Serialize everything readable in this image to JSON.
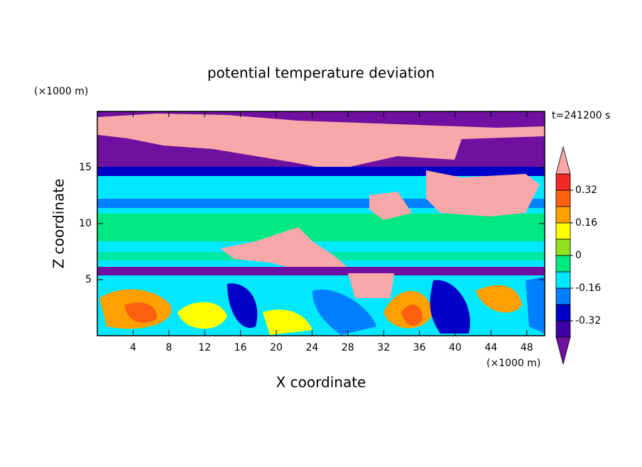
{
  "chart_data": {
    "type": "contour",
    "title": "potential temperature deviation",
    "x_label": "X coordinate",
    "y_label": "Z coordinate",
    "x_unit": "(×1000 m)",
    "y_unit": "(×1000 m)",
    "time_label": "t=241200 s",
    "xlim": [
      0,
      50
    ],
    "xticks": [
      4,
      8,
      12,
      16,
      20,
      24,
      28,
      32,
      36,
      40,
      44,
      48
    ],
    "ylim": [
      0,
      20
    ],
    "yticks": [
      5,
      10,
      15
    ],
    "levels": [
      -0.4,
      -0.32,
      -0.24,
      -0.16,
      -0.08,
      0,
      0.08,
      0.16,
      0.24,
      0.32,
      0.4
    ],
    "colors": [
      "#7010a0",
      "#4000a8",
      "#0000c8",
      "#0080ff",
      "#00e8ff",
      "#00e880",
      "#90e020",
      "#ffff00",
      "#ffa000",
      "#ff6010",
      "#f02828",
      "#f8a8a8"
    ],
    "colorbar_ticks": [
      -0.32,
      -0.16,
      0,
      0.16,
      0.32
    ]
  }
}
